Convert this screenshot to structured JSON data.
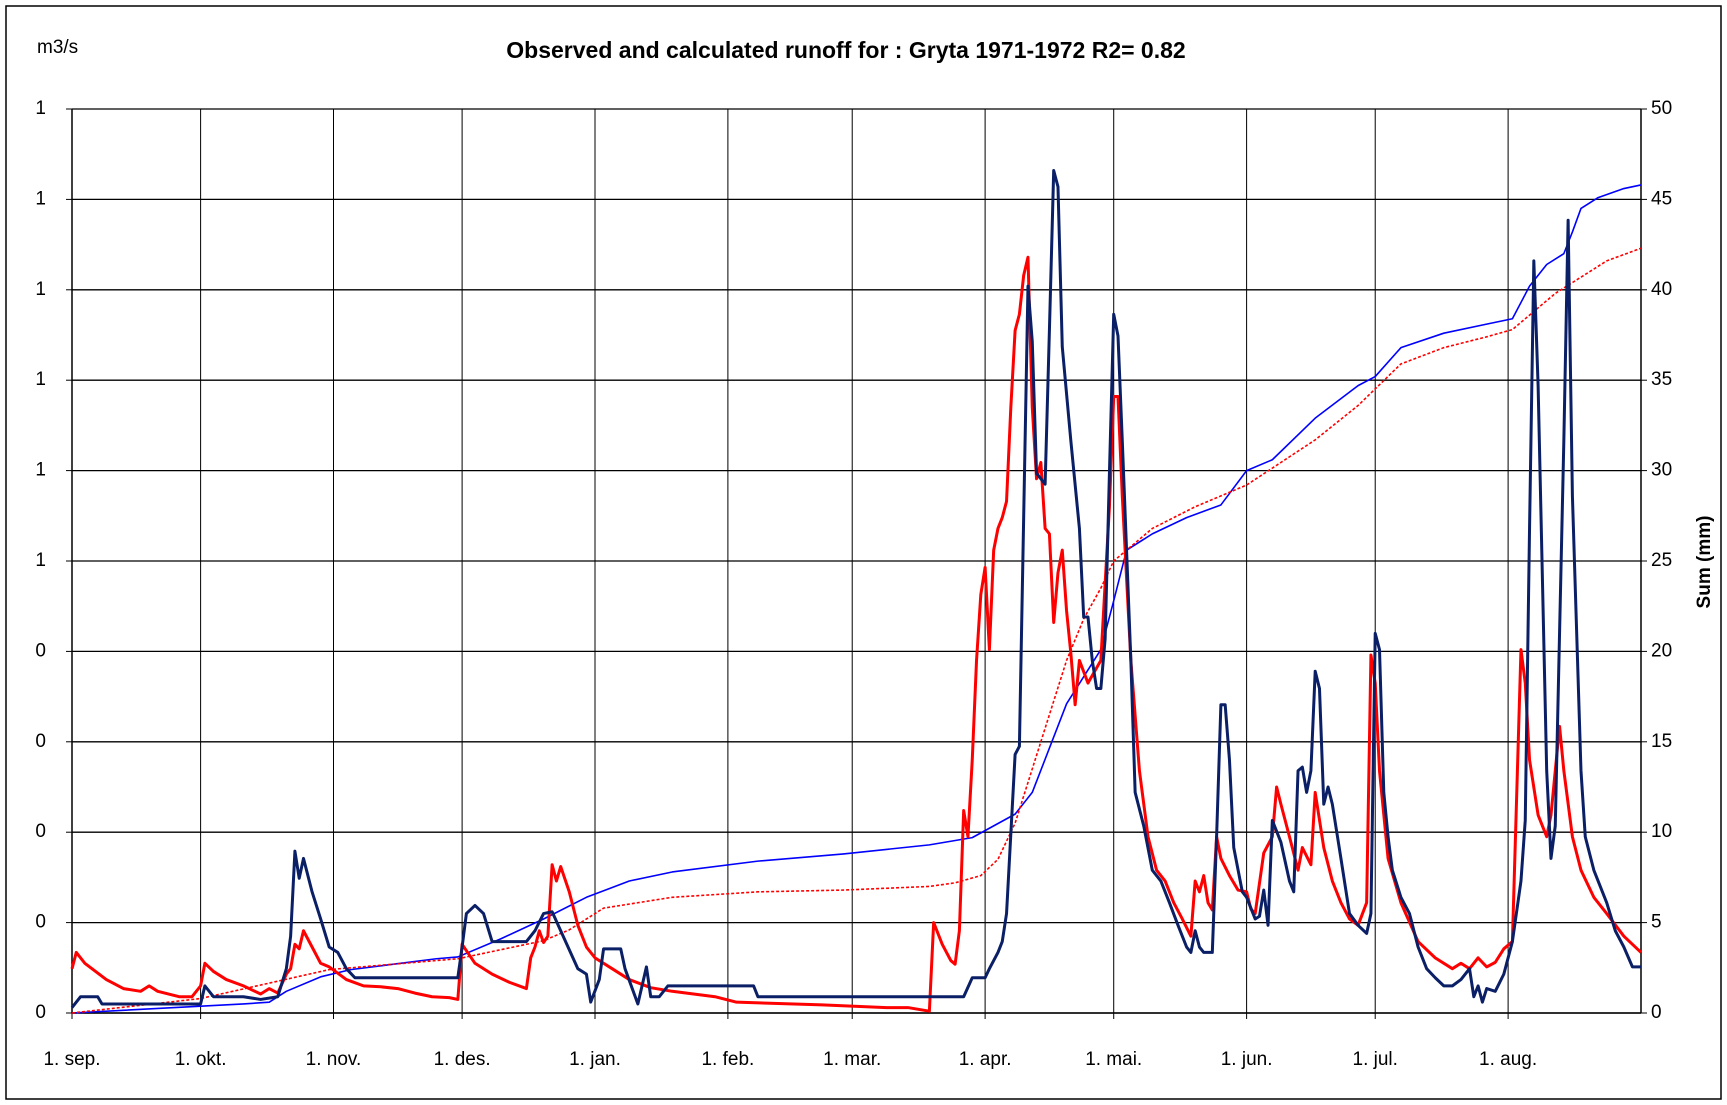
{
  "chart_data": {
    "type": "line",
    "title": "Observed and calculated runoff for : Gryta 1971-1972   R2= 0.82",
    "y_label": "m3/s",
    "y2_label": "Sum (mm)",
    "grid": true,
    "xlim": [
      0,
      366
    ],
    "xticks": [
      {
        "value": 0,
        "label": "1. sep."
      },
      {
        "value": 30,
        "label": "1. okt."
      },
      {
        "value": 61,
        "label": "1. nov."
      },
      {
        "value": 91,
        "label": "1. des."
      },
      {
        "value": 122,
        "label": "1. jan."
      },
      {
        "value": 153,
        "label": "1. feb."
      },
      {
        "value": 182,
        "label": "1. mar."
      },
      {
        "value": 213,
        "label": "1. apr."
      },
      {
        "value": 243,
        "label": "1. mai."
      },
      {
        "value": 274,
        "label": "1. jun."
      },
      {
        "value": 304,
        "label": "1. jul."
      },
      {
        "value": 335,
        "label": "1. aug."
      }
    ],
    "ylim": [
      0,
      1
    ],
    "yticks": [
      0,
      {
        "value": 0.1,
        "label": "0"
      },
      {
        "value": 0.2,
        "label": "0"
      },
      {
        "value": 0.3,
        "label": "0"
      },
      {
        "value": 0.4,
        "label": "0"
      },
      {
        "value": 0.5,
        "label": "1"
      },
      {
        "value": 0.6,
        "label": "1"
      },
      {
        "value": 0.7,
        "label": "1"
      },
      {
        "value": 0.8,
        "label": "1"
      },
      {
        "value": 0.9,
        "label": "1"
      },
      1
    ],
    "y2lim": [
      0,
      50
    ],
    "y2ticks": [
      0,
      5,
      10,
      15,
      20,
      25,
      30,
      35,
      40,
      45,
      50
    ],
    "series": [
      {
        "color": "#0000ff",
        "width": 1.6,
        "style": "solid",
        "axis": "y2",
        "x": [
          0,
          40,
          46,
          50,
          58,
          65,
          75,
          85,
          90,
          100,
          110,
          120,
          130,
          140,
          160,
          180,
          200,
          210,
          220,
          224,
          232,
          240,
          243,
          246,
          252,
          260,
          268,
          274,
          280,
          290,
          300,
          304,
          310,
          320,
          330,
          336,
          340,
          344,
          348,
          350,
          352,
          356,
          362,
          366
        ],
        "values": [
          0,
          0.5,
          0.6,
          1.2,
          2.0,
          2.4,
          2.7,
          3.0,
          3.1,
          4.1,
          5.2,
          6.4,
          7.3,
          7.8,
          8.4,
          8.8,
          9.3,
          9.7,
          11.0,
          12.2,
          17.1,
          20.1,
          22.8,
          25.6,
          26.5,
          27.4,
          28.1,
          30.0,
          30.6,
          32.9,
          34.7,
          35.2,
          36.8,
          37.6,
          38.1,
          38.4,
          40.2,
          41.4,
          42.0,
          43.2,
          44.5,
          45.1,
          45.6,
          45.8
        ]
      },
      {
        "color": "#ff0000",
        "width": 1.6,
        "style": "dotted",
        "axis": "y2",
        "x": [
          0,
          30,
          60,
          90,
          110,
          116,
          124,
          140,
          160,
          180,
          200,
          206,
          212,
          216,
          220,
          224,
          228,
          232,
          236,
          240,
          243,
          252,
          262,
          274,
          290,
          300,
          310,
          320,
          330,
          336,
          340,
          346,
          352,
          358,
          366
        ],
        "values": [
          0,
          0.8,
          2.4,
          3.0,
          4.0,
          4.6,
          5.8,
          6.4,
          6.7,
          6.8,
          7.0,
          7.2,
          7.6,
          8.5,
          10.5,
          13.5,
          16.5,
          19.5,
          21.8,
          23.5,
          25.0,
          26.8,
          28.0,
          29.2,
          31.7,
          33.6,
          35.9,
          36.8,
          37.4,
          37.8,
          38.6,
          39.8,
          40.7,
          41.6,
          42.3
        ]
      },
      {
        "color": "#ff0000",
        "width": 3,
        "style": "solid",
        "x": [
          0,
          1,
          3,
          8,
          12,
          16,
          18,
          20,
          25,
          28,
          30,
          31,
          33,
          36,
          40,
          44,
          46,
          48,
          50,
          51,
          52,
          53,
          54,
          56,
          58,
          60,
          62,
          64,
          68,
          72,
          76,
          80,
          84,
          88,
          90,
          91,
          94,
          98,
          102,
          106,
          107,
          108,
          109,
          110,
          111,
          112,
          113,
          114,
          116,
          118,
          120,
          122,
          126,
          130,
          135,
          140,
          150,
          155,
          175,
          190,
          195,
          200,
          201,
          203,
          205,
          206,
          207,
          208,
          209,
          210,
          211,
          212,
          213,
          214,
          215,
          216,
          217,
          218,
          219,
          220,
          221,
          222,
          223,
          224,
          225,
          226,
          227,
          228,
          229,
          230,
          231,
          232,
          233,
          234,
          235,
          237,
          240,
          242,
          243,
          244,
          245,
          247,
          249,
          251,
          253,
          255,
          257,
          259,
          261,
          262,
          263,
          264,
          265,
          266,
          267,
          268,
          270,
          272,
          274,
          275,
          276,
          278,
          280,
          281,
          282,
          284,
          286,
          287,
          289,
          290,
          292,
          294,
          296,
          298,
          300,
          302,
          303,
          304,
          305,
          307,
          310,
          314,
          318,
          322,
          324,
          326,
          328,
          330,
          332,
          334,
          336,
          338,
          339,
          340,
          342,
          344,
          345,
          347,
          348,
          350,
          352,
          355,
          358,
          362,
          364,
          366
        ],
        "values": [
          0.049,
          0.067,
          0.055,
          0.037,
          0.027,
          0.024,
          0.03,
          0.024,
          0.018,
          0.018,
          0.03,
          0.055,
          0.046,
          0.037,
          0.03,
          0.021,
          0.027,
          0.022,
          0.043,
          0.049,
          0.076,
          0.071,
          0.091,
          0.073,
          0.055,
          0.051,
          0.044,
          0.037,
          0.03,
          0.029,
          0.027,
          0.022,
          0.018,
          0.017,
          0.015,
          0.076,
          0.055,
          0.043,
          0.034,
          0.027,
          0.061,
          0.073,
          0.091,
          0.078,
          0.085,
          0.164,
          0.146,
          0.162,
          0.134,
          0.097,
          0.073,
          0.061,
          0.049,
          0.037,
          0.028,
          0.024,
          0.018,
          0.012,
          0.009,
          0.006,
          0.006,
          0.002,
          0.1,
          0.076,
          0.058,
          0.054,
          0.091,
          0.224,
          0.195,
          0.28,
          0.39,
          0.463,
          0.493,
          0.402,
          0.512,
          0.536,
          0.548,
          0.566,
          0.67,
          0.755,
          0.773,
          0.816,
          0.836,
          0.67,
          0.591,
          0.609,
          0.536,
          0.53,
          0.432,
          0.487,
          0.512,
          0.445,
          0.398,
          0.341,
          0.39,
          0.365,
          0.39,
          0.56,
          0.682,
          0.682,
          0.572,
          0.39,
          0.268,
          0.195,
          0.158,
          0.146,
          0.122,
          0.104,
          0.085,
          0.146,
          0.134,
          0.152,
          0.122,
          0.114,
          0.195,
          0.171,
          0.152,
          0.136,
          0.134,
          0.115,
          0.11,
          0.177,
          0.195,
          0.25,
          0.231,
          0.195,
          0.158,
          0.183,
          0.164,
          0.244,
          0.183,
          0.146,
          0.122,
          0.104,
          0.097,
          0.122,
          0.396,
          0.365,
          0.268,
          0.171,
          0.122,
          0.079,
          0.061,
          0.049,
          0.055,
          0.049,
          0.061,
          0.051,
          0.056,
          0.071,
          0.079,
          0.402,
          0.365,
          0.28,
          0.219,
          0.195,
          0.219,
          0.317,
          0.268,
          0.195,
          0.158,
          0.128,
          0.11,
          0.085,
          0.076,
          0.067
        ]
      },
      {
        "color": "#0a1f66",
        "width": 3,
        "style": "solid",
        "x": [
          0,
          2,
          6,
          7,
          30,
          31,
          33,
          40,
          44,
          48,
          50,
          51,
          52,
          53,
          54,
          56,
          58,
          60,
          62,
          64,
          66,
          90,
          91,
          92,
          94,
          96,
          98,
          106,
          108,
          110,
          112,
          114,
          118,
          120,
          121,
          123,
          124,
          128,
          129,
          132,
          134,
          135,
          137,
          139,
          159,
          160,
          208,
          210,
          213,
          214,
          216,
          217,
          218,
          220,
          221,
          223,
          224,
          225,
          227,
          228,
          229,
          230,
          231,
          233,
          235,
          236,
          237,
          238,
          239,
          240,
          241,
          242,
          243,
          244,
          245,
          247,
          248,
          250,
          252,
          254,
          256,
          258,
          260,
          261,
          262,
          263,
          264,
          266,
          267,
          268,
          269,
          270,
          271,
          273,
          274,
          276,
          277,
          278,
          279,
          280,
          282,
          284,
          285,
          286,
          287,
          288,
          289,
          290,
          291,
          292,
          293,
          294,
          296,
          298,
          300,
          302,
          303,
          304,
          305,
          306,
          307,
          308,
          310,
          312,
          314,
          316,
          318,
          320,
          322,
          324,
          326,
          327,
          328,
          329,
          330,
          332,
          334,
          336,
          338,
          339,
          340,
          341,
          342,
          344,
          345,
          346,
          348,
          349,
          350,
          352,
          353,
          355,
          358,
          360,
          362,
          364,
          366
        ],
        "values": [
          0.006,
          0.018,
          0.018,
          0.01,
          0.01,
          0.03,
          0.018,
          0.018,
          0.015,
          0.018,
          0.049,
          0.085,
          0.179,
          0.149,
          0.171,
          0.134,
          0.104,
          0.073,
          0.067,
          0.049,
          0.039,
          0.039,
          0.073,
          0.11,
          0.119,
          0.11,
          0.079,
          0.079,
          0.091,
          0.11,
          0.112,
          0.091,
          0.049,
          0.043,
          0.012,
          0.037,
          0.071,
          0.071,
          0.049,
          0.01,
          0.051,
          0.018,
          0.018,
          0.03,
          0.03,
          0.018,
          0.018,
          0.039,
          0.039,
          0.049,
          0.067,
          0.079,
          0.11,
          0.286,
          0.295,
          0.804,
          0.743,
          0.597,
          0.585,
          0.755,
          0.932,
          0.914,
          0.737,
          0.633,
          0.536,
          0.438,
          0.438,
          0.39,
          0.359,
          0.359,
          0.414,
          0.597,
          0.773,
          0.749,
          0.633,
          0.39,
          0.244,
          0.207,
          0.158,
          0.146,
          0.122,
          0.097,
          0.073,
          0.067,
          0.091,
          0.073,
          0.067,
          0.067,
          0.195,
          0.341,
          0.341,
          0.28,
          0.183,
          0.134,
          0.128,
          0.104,
          0.107,
          0.136,
          0.097,
          0.213,
          0.189,
          0.146,
          0.134,
          0.268,
          0.272,
          0.244,
          0.268,
          0.378,
          0.359,
          0.231,
          0.25,
          0.231,
          0.171,
          0.11,
          0.097,
          0.088,
          0.11,
          0.42,
          0.402,
          0.244,
          0.195,
          0.158,
          0.128,
          0.11,
          0.073,
          0.049,
          0.039,
          0.03,
          0.03,
          0.037,
          0.049,
          0.018,
          0.03,
          0.012,
          0.027,
          0.024,
          0.043,
          0.079,
          0.146,
          0.213,
          0.536,
          0.832,
          0.694,
          0.268,
          0.171,
          0.207,
          0.633,
          0.877,
          0.572,
          0.268,
          0.195,
          0.158,
          0.122,
          0.091,
          0.073,
          0.051,
          0.051
        ]
      }
    ]
  }
}
